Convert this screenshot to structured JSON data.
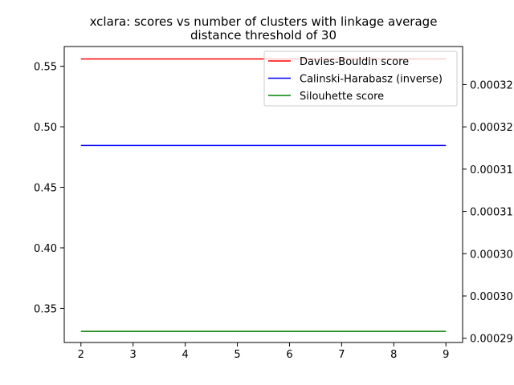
{
  "chart_data": {
    "type": "line",
    "title": "xclara: scores vs number of clusters with linkage average\ndistance threshold of 30",
    "xlabel": "",
    "ylabel": "",
    "y2label": "",
    "grid": false,
    "legend_position": "top-right",
    "xlim": [
      1.68,
      9.32
    ],
    "ylim": [
      0.3218,
      0.5663
    ],
    "y2lim": [
      0.0002895,
      0.0003245
    ],
    "x_ticks": [
      2,
      3,
      4,
      5,
      6,
      7,
      8,
      9
    ],
    "y_ticks": [
      0.35,
      0.4,
      0.45,
      0.5,
      0.55
    ],
    "y2_ticks": [
      0.00029,
      0.000295,
      0.0003,
      0.000305,
      0.00031,
      0.000315,
      0.00032
    ],
    "y2_tick_labels": [
      "0.00029",
      "0.00030",
      "0.00030",
      "0.00031",
      "0.00031",
      "0.00032",
      "0.00032"
    ],
    "x": [
      2,
      3,
      4,
      5,
      6,
      7,
      8,
      9
    ],
    "series": [
      {
        "name": "Davies-Bouldin score",
        "color": "#ff0000",
        "axis": "left",
        "values": [
          0.556,
          0.556,
          0.556,
          0.556,
          0.556,
          0.556,
          0.556,
          0.556
        ]
      },
      {
        "name": "Calinski-Harabasz (inverse)",
        "color": "#0000ff",
        "axis": "right",
        "values": [
          0.0003128,
          0.0003128,
          0.0003128,
          0.0003128,
          0.0003128,
          0.0003128,
          0.0003128,
          0.0003128
        ]
      },
      {
        "name": "Silouhette score",
        "color": "#008000",
        "axis": "left",
        "values": [
          0.331,
          0.331,
          0.331,
          0.331,
          0.331,
          0.331,
          0.331,
          0.331
        ]
      }
    ]
  }
}
